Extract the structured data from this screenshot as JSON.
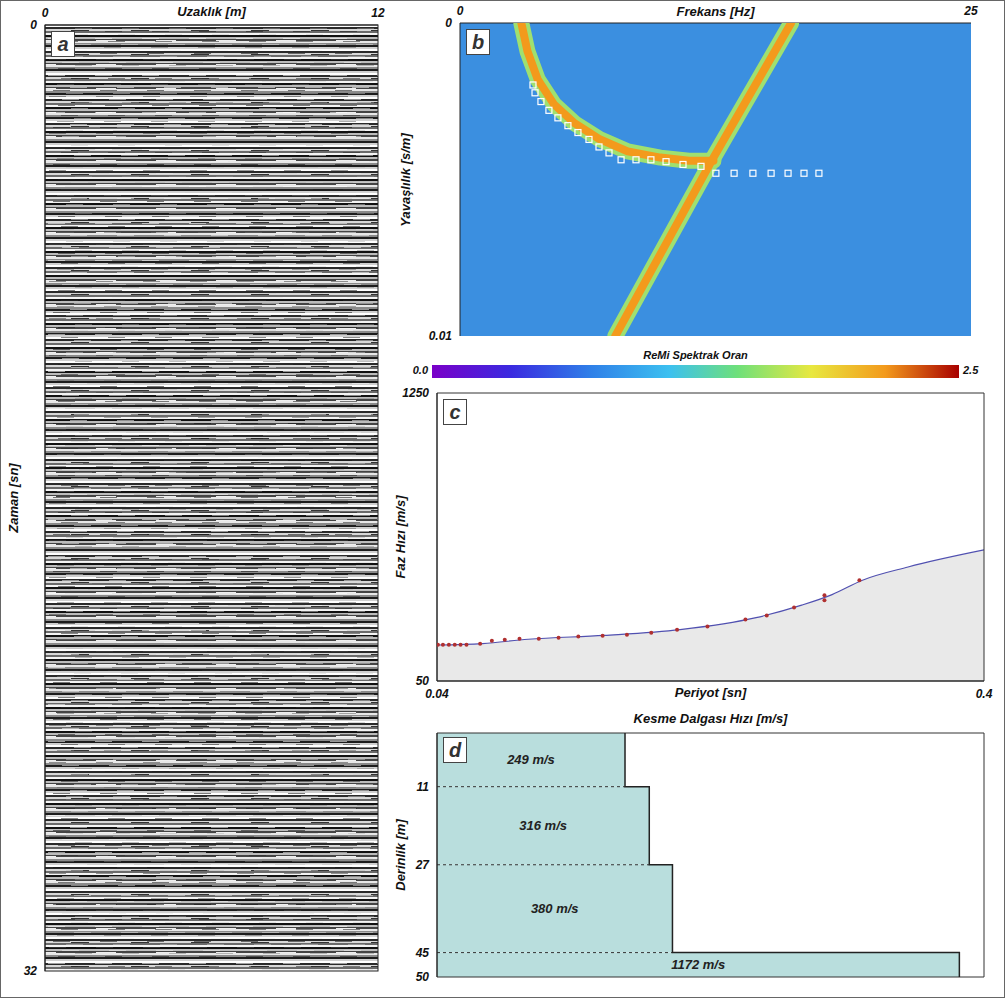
{
  "chart_data": [
    {
      "type": "seismic_record",
      "panel_label": "a",
      "x_label": "Uzaklık [m]",
      "y_label": "Zaman [sn]",
      "xlim": [
        0,
        12
      ],
      "xticks": [
        0,
        12
      ],
      "ylim": [
        0,
        32
      ],
      "yticks": [
        0,
        32
      ]
    },
    {
      "type": "spectral_image",
      "panel_label": "b",
      "x_label": "Frekans [Hz]",
      "y_label": "Yavaşlılık [s/m]",
      "xlim": [
        0,
        25
      ],
      "xticks": [
        0,
        25
      ],
      "ylim": [
        0,
        0.01
      ],
      "yticks": [
        0,
        0.01
      ],
      "picks": {
        "x": [
          3.57,
          3.67,
          3.96,
          4.35,
          4.79,
          5.28,
          5.77,
          6.31,
          6.8,
          7.29,
          7.88,
          8.61,
          9.34,
          10.08,
          10.91,
          11.79,
          12.52,
          13.41,
          14.33,
          15.22,
          16.05,
          16.83,
          17.56
        ],
        "y": [
          0.00198,
          0.00223,
          0.00251,
          0.00279,
          0.00303,
          0.00328,
          0.0035,
          0.00372,
          0.00396,
          0.00415,
          0.00437,
          0.00437,
          0.00437,
          0.00443,
          0.00452,
          0.00458,
          0.0048,
          0.0048,
          0.0048,
          0.0048,
          0.0048,
          0.0048,
          0.0048
        ]
      },
      "ridges": [
        {
          "x": [
            3.0,
            3.3,
            3.8,
            4.6,
            5.6,
            6.8,
            8.2,
            9.8,
            11.2,
            12.4
          ],
          "y": [
            0,
            0.0009,
            0.0018,
            0.0026,
            0.0032,
            0.0037,
            0.0041,
            0.0043,
            0.0044,
            0.0044
          ]
        },
        {
          "x": [
            7.6,
            12.4,
            16.2
          ],
          "y": [
            0.01,
            0.0043,
            0
          ]
        }
      ],
      "colorbar": {
        "label": "ReMi Spektrak Oran",
        "range": [
          0,
          2.5
        ],
        "ticks": [
          {
            "value": 0,
            "label": "0.0"
          },
          {
            "value": 2.5,
            "label": "2.5"
          }
        ]
      }
    },
    {
      "type": "scatter",
      "panel_label": "c",
      "x_label": "Periyot [sn]",
      "y_label": "Faz Hızı [m/s]",
      "xlim": [
        0.04,
        0.4
      ],
      "xticks": [
        0.04,
        0.4
      ],
      "ylim": [
        50,
        1250
      ],
      "yticks": [
        50,
        1250
      ],
      "series": [
        {
          "type": "scatter",
          "color": "#b03030",
          "x": [
            0.0406,
            0.0439,
            0.0478,
            0.0517,
            0.0555,
            0.0594,
            0.0684,
            0.0761,
            0.0846,
            0.0943,
            0.107,
            0.12,
            0.133,
            0.149,
            0.165,
            0.181,
            0.198,
            0.218,
            0.243,
            0.257,
            0.275,
            0.295,
            0.295,
            0.318
          ],
          "values": [
            201,
            201,
            201,
            201,
            201,
            201,
            205,
            218,
            222,
            226,
            226,
            230,
            235,
            239,
            243,
            251,
            264,
            277,
            306,
            323,
            356,
            407,
            386,
            470
          ]
        },
        {
          "type": "line",
          "color": "#5050b0",
          "x": [
            0.04,
            0.07,
            0.1,
            0.15,
            0.2,
            0.25,
            0.28,
            0.3,
            0.32,
            0.35,
            0.4
          ],
          "values": [
            200,
            206,
            224,
            240,
            264,
            314,
            366,
            410,
            470,
            525,
            596
          ]
        }
      ]
    },
    {
      "type": "step_profile",
      "panel_label": "d",
      "title": "Kesme Dalgası Hızı [m/s]",
      "y_label": "Derinlik [m]",
      "xlim": [
        -270,
        1240
      ],
      "ylim": [
        0,
        50
      ],
      "yticks": [
        11,
        27,
        45,
        50
      ],
      "tick_labels": "y",
      "color": "#b9dedd",
      "layers": [
        {
          "top": 0,
          "bottom": 11,
          "vs": 249,
          "label": "249 m/s"
        },
        {
          "top": 11,
          "bottom": 27,
          "vs": 316,
          "label": "316 m/s"
        },
        {
          "top": 27,
          "bottom": 45,
          "vs": 380,
          "label": "380 m/s"
        },
        {
          "top": 45,
          "bottom": 50,
          "vs": 1172,
          "label": "1172 m/s"
        }
      ]
    }
  ]
}
